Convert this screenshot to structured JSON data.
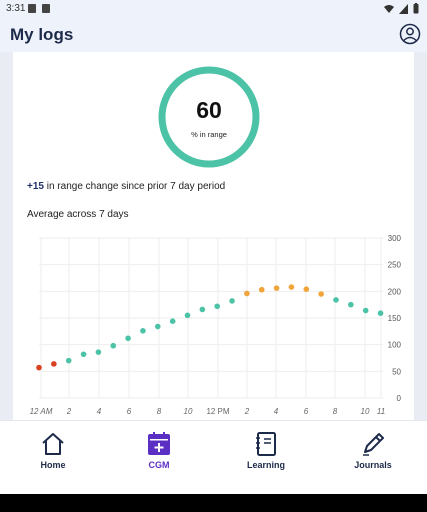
{
  "status_bar": {
    "time": "3:31"
  },
  "app_bar": {
    "title": "My logs"
  },
  "summary": {
    "percent_in_range": "60",
    "percent_caption": "% in range",
    "ring_fraction": 0.6,
    "change_value": "+15",
    "change_text": " in range change since prior 7 day period",
    "average_label": "Average across 7 days"
  },
  "chart_data": {
    "type": "scatter",
    "title": "",
    "xlabel": "",
    "ylabel": "",
    "x_tick_labels": [
      "12 AM",
      "2",
      "4",
      "6",
      "8",
      "10",
      "12 PM",
      "2",
      "4",
      "6",
      "8",
      "10",
      "11"
    ],
    "y_tick_labels": [
      "300",
      "250",
      "200",
      "150",
      "100",
      "50",
      "0"
    ],
    "ylim": [
      0,
      300
    ],
    "grid": true,
    "colors": {
      "low": "#d9401f",
      "in_range": "#4cc3a6",
      "high": "#f0a43a",
      "grid": "#eeeeee"
    },
    "series": [
      {
        "x": 0,
        "y": 57,
        "status": "low"
      },
      {
        "x": 1,
        "y": 64,
        "status": "low"
      },
      {
        "x": 2,
        "y": 70,
        "status": "in_range"
      },
      {
        "x": 3,
        "y": 82,
        "status": "in_range"
      },
      {
        "x": 4,
        "y": 86,
        "status": "in_range"
      },
      {
        "x": 5,
        "y": 98,
        "status": "in_range"
      },
      {
        "x": 6,
        "y": 112,
        "status": "in_range"
      },
      {
        "x": 7,
        "y": 126,
        "status": "in_range"
      },
      {
        "x": 8,
        "y": 134,
        "status": "in_range"
      },
      {
        "x": 9,
        "y": 144,
        "status": "in_range"
      },
      {
        "x": 10,
        "y": 155,
        "status": "in_range"
      },
      {
        "x": 11,
        "y": 166,
        "status": "in_range"
      },
      {
        "x": 12,
        "y": 172,
        "status": "in_range"
      },
      {
        "x": 13,
        "y": 182,
        "status": "in_range"
      },
      {
        "x": 14,
        "y": 196,
        "status": "high"
      },
      {
        "x": 15,
        "y": 203,
        "status": "high"
      },
      {
        "x": 16,
        "y": 206,
        "status": "high"
      },
      {
        "x": 17,
        "y": 208,
        "status": "high"
      },
      {
        "x": 18,
        "y": 204,
        "status": "high"
      },
      {
        "x": 19,
        "y": 195,
        "status": "high"
      },
      {
        "x": 20,
        "y": 184,
        "status": "in_range"
      },
      {
        "x": 21,
        "y": 175,
        "status": "in_range"
      },
      {
        "x": 22,
        "y": 164,
        "status": "in_range"
      },
      {
        "x": 23,
        "y": 159,
        "status": "in_range"
      }
    ]
  },
  "bottom_nav": {
    "items": [
      {
        "label": "Home",
        "icon": "home-icon"
      },
      {
        "label": "CGM",
        "icon": "calendar-plus-icon",
        "active": true
      },
      {
        "label": "Learning",
        "icon": "notebook-icon"
      },
      {
        "label": "Journals",
        "icon": "pen-icon"
      }
    ],
    "active_color": "#5b2ec4"
  }
}
